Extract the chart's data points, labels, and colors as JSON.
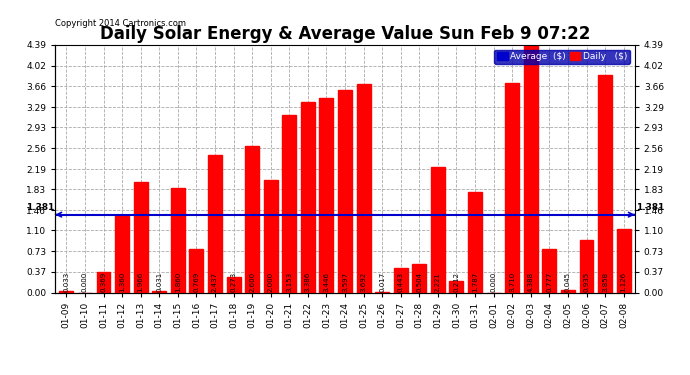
{
  "title": "Daily Solar Energy & Average Value Sun Feb 9 07:22",
  "copyright": "Copyright 2014 Cartronics.com",
  "categories": [
    "01-09",
    "01-10",
    "01-11",
    "01-12",
    "01-13",
    "01-14",
    "01-15",
    "01-16",
    "01-17",
    "01-18",
    "01-19",
    "01-20",
    "01-21",
    "01-22",
    "01-23",
    "01-24",
    "01-25",
    "01-26",
    "01-27",
    "01-28",
    "01-29",
    "01-30",
    "01-31",
    "02-01",
    "02-02",
    "02-03",
    "02-04",
    "02-05",
    "02-06",
    "02-07",
    "02-08"
  ],
  "values": [
    0.033,
    0.0,
    0.369,
    1.36,
    1.966,
    0.031,
    1.86,
    0.769,
    2.437,
    0.273,
    2.6,
    2.0,
    3.153,
    3.386,
    3.446,
    3.597,
    3.692,
    0.017,
    0.443,
    0.504,
    2.221,
    0.212,
    1.787,
    0.0,
    3.71,
    4.388,
    0.777,
    0.045,
    0.935,
    3.858,
    1.126
  ],
  "average_line": 1.381,
  "bar_color": "#ff0000",
  "average_color": "#0000cc",
  "background_color": "#ffffff",
  "grid_color": "#aaaaaa",
  "yticks": [
    0.0,
    0.37,
    0.73,
    1.1,
    1.46,
    1.83,
    2.19,
    2.56,
    2.93,
    3.29,
    3.66,
    4.02,
    4.39
  ],
  "avg_label": "1.381",
  "legend_avg_color": "#0000cc",
  "legend_daily_color": "#ff0000",
  "legend_bg_color": "#0000aa",
  "title_fontsize": 12,
  "tick_fontsize": 6.5,
  "bar_width": 0.75
}
